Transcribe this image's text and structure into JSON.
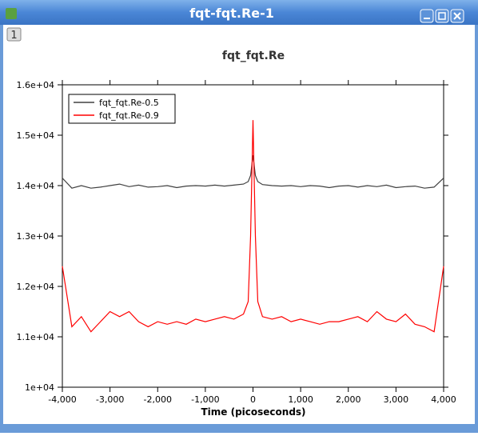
{
  "window": {
    "title": "fqt-fqt.Re-1",
    "tab": "1"
  },
  "chart_data": {
    "type": "line",
    "title": "fqt_fqt.Re",
    "x_label": "Time (picoseconds)",
    "x": [
      -4000,
      -3800,
      -3600,
      -3400,
      -3200,
      -3000,
      -2800,
      -2600,
      -2400,
      -2200,
      -2000,
      -1800,
      -1600,
      -1400,
      -1200,
      -1000,
      -800,
      -600,
      -400,
      -200,
      -100,
      -50,
      0,
      50,
      100,
      200,
      400,
      600,
      800,
      1000,
      1200,
      1400,
      1600,
      1800,
      2000,
      2200,
      2400,
      2600,
      2800,
      3000,
      3200,
      3400,
      3600,
      3800,
      4000
    ],
    "series": [
      {
        "name": "fqt_fqt.Re-0.5",
        "color": "#404040",
        "values": [
          14150,
          13950,
          14000,
          13950,
          13970,
          14000,
          14030,
          13980,
          14010,
          13970,
          13980,
          14000,
          13960,
          13990,
          14000,
          13990,
          14010,
          13990,
          14010,
          14030,
          14080,
          14200,
          14600,
          14200,
          14080,
          14020,
          14000,
          13990,
          14000,
          13980,
          14000,
          13990,
          13960,
          13990,
          14000,
          13970,
          14000,
          13980,
          14010,
          13960,
          13980,
          13990,
          13950,
          13970,
          14150
        ]
      },
      {
        "name": "fqt_fqt.Re-0.9",
        "color": "#ff0000",
        "values": [
          12400,
          11200,
          11400,
          11100,
          11300,
          11500,
          11400,
          11500,
          11300,
          11200,
          11300,
          11250,
          11300,
          11250,
          11350,
          11300,
          11350,
          11400,
          11350,
          11450,
          11700,
          13000,
          15300,
          13000,
          11700,
          11400,
          11350,
          11400,
          11300,
          11350,
          11300,
          11250,
          11300,
          11300,
          11350,
          11400,
          11300,
          11500,
          11350,
          11300,
          11450,
          11250,
          11200,
          11100,
          12400
        ]
      }
    ],
    "xlim": [
      -4000,
      4000
    ],
    "xticks": [
      {
        "value": -4000,
        "label": "-4,000"
      },
      {
        "value": -3000,
        "label": "-3,000"
      },
      {
        "value": -2000,
        "label": "-2,000"
      },
      {
        "value": -1000,
        "label": "-1,000"
      },
      0,
      {
        "value": 1000,
        "label": "1,000"
      },
      {
        "value": 2000,
        "label": "2,000"
      },
      {
        "value": 3000,
        "label": "3,000"
      },
      {
        "value": 4000,
        "label": "4,000"
      }
    ],
    "ylim": [
      10000,
      16000
    ],
    "yticks": [
      {
        "value": 10000,
        "label": "1e+04"
      },
      {
        "value": 11000,
        "label": "1.1e+04"
      },
      {
        "value": 12000,
        "label": "1.2e+04"
      },
      {
        "value": 13000,
        "label": "1.3e+04"
      },
      {
        "value": 14000,
        "label": "1.4e+04"
      },
      {
        "value": 15000,
        "label": "1.5e+04"
      },
      {
        "value": 16000,
        "label": "1.6e+04"
      }
    ],
    "legend": "upper left"
  }
}
